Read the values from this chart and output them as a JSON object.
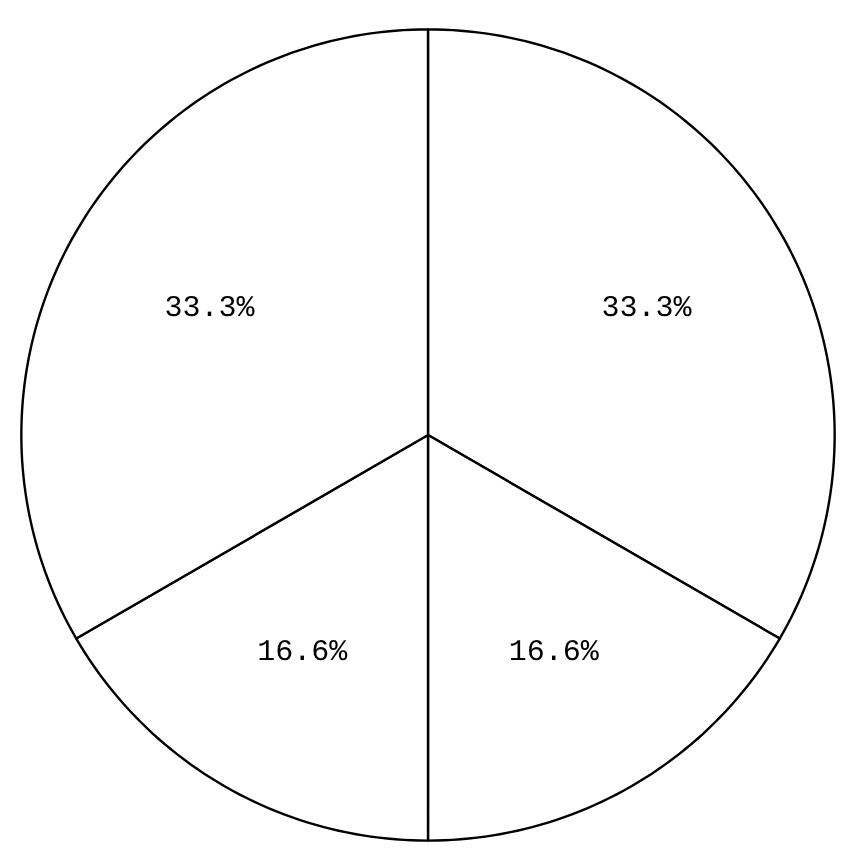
{
  "chart_data": {
    "type": "pie",
    "categories": [
      null,
      null,
      null,
      null
    ],
    "values": [
      33.3,
      16.6,
      16.6,
      33.3
    ],
    "colors": [
      "#ffffff",
      "#ffffff",
      "#ffffff",
      "#ffffff"
    ],
    "value_labels": [
      "33.3%",
      "16.6%",
      "16.6%",
      "33.3%"
    ]
  }
}
